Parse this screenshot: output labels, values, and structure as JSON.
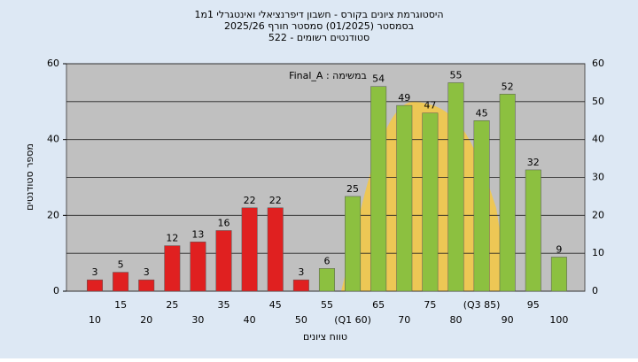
{
  "chart_data": {
    "type": "bar",
    "title": "היסטוגרמת ציונים בקורס - חשבון דיפרנציאלי ואינטגרלי 1מ1",
    "subtitle": "בסמסטר (01/2025) סמסטר חורף 2025/26",
    "subtitle2": "סטודנטים רשומים - 522",
    "annotation": "Final_A : במשימה",
    "x_label": "טווח ציונים",
    "y_label": "מספר סטודנטים",
    "categories": [
      "10",
      "15",
      "20",
      "25",
      "30",
      "35",
      "40",
      "45",
      "50",
      "55",
      "(Q1 60)",
      "65",
      "70",
      "75",
      "80",
      "(Q3 85)",
      "90",
      "95",
      "100"
    ],
    "values": [
      3,
      5,
      3,
      12,
      13,
      16,
      22,
      22,
      3,
      6,
      25,
      54,
      49,
      47,
      55,
      45,
      52,
      32,
      9
    ],
    "colors": [
      "#e02020",
      "#e02020",
      "#e02020",
      "#e02020",
      "#e02020",
      "#e02020",
      "#e02020",
      "#e02020",
      "#e02020",
      "#8cc040",
      "#8cc040",
      "#8cc040",
      "#8cc040",
      "#8cc040",
      "#8cc040",
      "#8cc040",
      "#8cc040",
      "#8cc040",
      "#8cc040"
    ],
    "ylim": [
      0,
      60
    ],
    "yticks": [
      0,
      20,
      40,
      60
    ],
    "y2lim": [
      0,
      60
    ],
    "y2ticks": [
      0,
      10,
      20,
      30,
      40,
      50,
      60
    ],
    "grid": true
  }
}
